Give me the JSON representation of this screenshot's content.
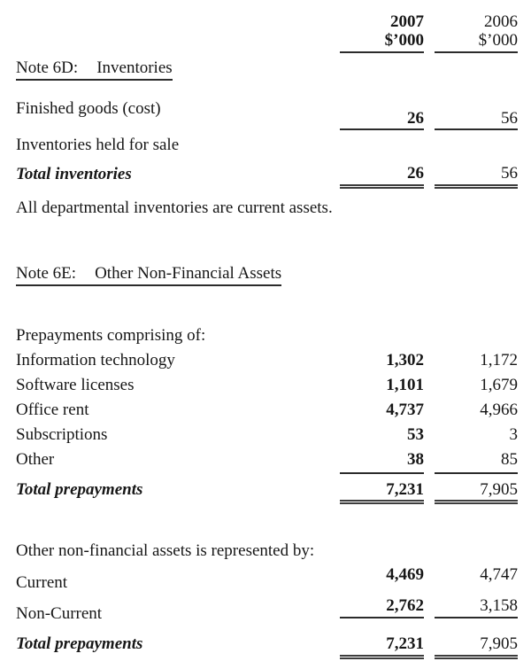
{
  "colors": {
    "text": "#161616",
    "rule": "#2b2b2b"
  },
  "header": {
    "col2007": {
      "year": "2007",
      "unit": "$’000"
    },
    "col2006": {
      "year": "2006",
      "unit": "$’000"
    }
  },
  "note6d": {
    "id": "Note 6D:",
    "title": "Inventories",
    "rows": [
      {
        "label": "Finished goods (cost)",
        "v2007": "26",
        "v2006": "56"
      },
      {
        "label": "Inventories held for sale",
        "v2007": "",
        "v2006": ""
      }
    ],
    "total": {
      "label": "Total inventories",
      "v2007": "26",
      "v2006": "56"
    },
    "footnote": "All departmental inventories are current assets."
  },
  "note6e": {
    "id": "Note 6E:",
    "title": "Other Non-Financial Assets",
    "prepayments_intro": "Prepayments comprising of:",
    "prepayments": [
      {
        "label": "Information technology",
        "v2007": "1,302",
        "v2006": "1,172"
      },
      {
        "label": "Software licenses",
        "v2007": "1,101",
        "v2006": "1,679"
      },
      {
        "label": "Office rent",
        "v2007": "4,737",
        "v2006": "4,966"
      },
      {
        "label": "Subscriptions",
        "v2007": "53",
        "v2006": "3"
      },
      {
        "label": "Other",
        "v2007": "38",
        "v2006": "85"
      }
    ],
    "total_prepayments": {
      "label": "Total prepayments",
      "v2007": "7,231",
      "v2006": "7,905"
    },
    "represented_intro": "Other non-financial assets is represented by:",
    "represented": [
      {
        "label": "Current",
        "v2007": "4,469",
        "v2006": "4,747"
      },
      {
        "label": "Non-Current",
        "v2007": "2,762",
        "v2006": "3,158"
      }
    ],
    "total_represented": {
      "label": "Total prepayments",
      "v2007": "7,231",
      "v2006": "7,905"
    }
  }
}
